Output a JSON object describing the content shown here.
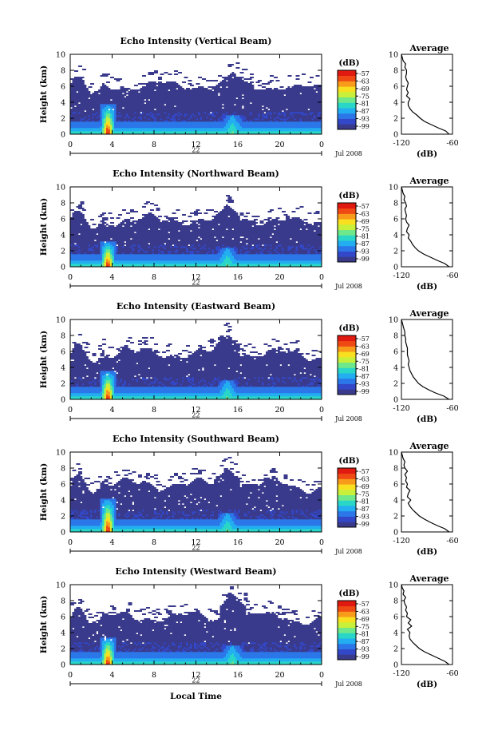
{
  "chart_data": [
    {
      "type": "heatmap",
      "title": "Echo Intensity (Vertical Beam)",
      "ylabel": "Height (km)",
      "x_ticks": [
        "0",
        "4",
        "8",
        "12",
        "16",
        "20",
        "0"
      ],
      "y_ticks": [
        "0",
        "2",
        "4",
        "6",
        "8",
        "10"
      ],
      "xlim": [
        0,
        24
      ],
      "ylim": [
        0,
        10
      ],
      "date_label": "Jul 2008",
      "day": "22",
      "colorbar": {
        "label": "(dB)",
        "ticks": [
          "-57",
          "-63",
          "-69",
          "-75",
          "-81",
          "-87",
          "-93",
          "-99"
        ],
        "colors": [
          "#3a3a8c",
          "#3248c8",
          "#2b76e8",
          "#22aef0",
          "#2ad6c8",
          "#6ee88a",
          "#c8f03a",
          "#f8e020",
          "#f89a1a",
          "#f04a14",
          "#e01a10"
        ]
      },
      "cloud_top_km": 6.1,
      "cloud_peak": {
        "hour": 15.5,
        "top_km": 7.9
      },
      "core_peak": {
        "hour": 3.6,
        "top_km": 3.8
      },
      "avg_profile": {
        "title": "Average",
        "xlabel": "(dB)",
        "xlim": [
          -120,
          -60
        ],
        "x_ticks": [
          "-120",
          "-60"
        ],
        "y_ticks": [
          "0",
          "2",
          "4",
          "6",
          "8",
          "10"
        ],
        "height_km": [
          0,
          0.4,
          0.8,
          1.2,
          1.6,
          2,
          2.4,
          2.8,
          3.2,
          3.6,
          4,
          4.4,
          4.8,
          5.2,
          5.6,
          6,
          6.4,
          6.8,
          7.2,
          7.6,
          8,
          8.4,
          8.8,
          9.2,
          9.6,
          10
        ],
        "db": [
          -64,
          -68,
          -77,
          -85,
          -93,
          -98,
          -102,
          -107,
          -110,
          -112,
          -112,
          -110,
          -114,
          -112,
          -114,
          -113,
          -112,
          -114,
          -115,
          -114,
          -114,
          -116,
          -115,
          -118,
          -119,
          -120
        ]
      }
    },
    {
      "type": "heatmap",
      "title": "Echo Intensity (Northward Beam)",
      "ylabel": "Height (km)",
      "x_ticks": [
        "0",
        "4",
        "8",
        "12",
        "16",
        "20",
        "0"
      ],
      "y_ticks": [
        "0",
        "2",
        "4",
        "6",
        "8",
        "10"
      ],
      "xlim": [
        0,
        24
      ],
      "ylim": [
        0,
        10
      ],
      "date_label": "Jul 2008",
      "day": "22",
      "colorbar": {
        "label": "(dB)",
        "ticks": [
          "-57",
          "-63",
          "-69",
          "-75",
          "-81",
          "-87",
          "-93",
          "-99"
        ],
        "colors": [
          "#3a3a8c",
          "#3248c8",
          "#2b76e8",
          "#22aef0",
          "#2ad6c8",
          "#6ee88a",
          "#c8f03a",
          "#f8e020",
          "#f89a1a",
          "#f04a14",
          "#e01a10"
        ]
      },
      "cloud_top_km": 5.9,
      "cloud_peak": {
        "hour": 15.0,
        "top_km": 7.8
      },
      "core_peak": {
        "hour": 3.6,
        "top_km": 3.2
      },
      "avg_profile": {
        "title": "Average",
        "xlabel": "(dB)",
        "xlim": [
          -120,
          -60
        ],
        "x_ticks": [
          "-120",
          "-60"
        ],
        "y_ticks": [
          "0",
          "2",
          "4",
          "6",
          "8",
          "10"
        ],
        "height_km": [
          0,
          0.4,
          0.8,
          1.2,
          1.6,
          2,
          2.4,
          2.8,
          3.2,
          3.6,
          4,
          4.4,
          4.8,
          5.2,
          5.6,
          6,
          6.4,
          6.8,
          7.2,
          7.6,
          8,
          8.4,
          8.8,
          9.2,
          9.6,
          10
        ],
        "db": [
          -64,
          -69,
          -78,
          -86,
          -94,
          -100,
          -104,
          -107,
          -109,
          -112,
          -111,
          -114,
          -113,
          -111,
          -114,
          -115,
          -114,
          -115,
          -116,
          -114,
          -115,
          -117,
          -116,
          -118,
          -119,
          -120
        ]
      }
    },
    {
      "type": "heatmap",
      "title": "Echo Intensity (Eastward Beam)",
      "ylabel": "Height (km)",
      "x_ticks": [
        "0",
        "4",
        "8",
        "12",
        "16",
        "20",
        "0"
      ],
      "y_ticks": [
        "0",
        "2",
        "4",
        "6",
        "8",
        "10"
      ],
      "xlim": [
        0,
        24
      ],
      "ylim": [
        0,
        10
      ],
      "date_label": "Jul 2008",
      "day": "22",
      "colorbar": {
        "label": "(dB)",
        "ticks": [
          "-57",
          "-63",
          "-69",
          "-75",
          "-81",
          "-87",
          "-93",
          "-99"
        ],
        "colors": [
          "#3a3a8c",
          "#3248c8",
          "#2b76e8",
          "#22aef0",
          "#2ad6c8",
          "#6ee88a",
          "#c8f03a",
          "#f8e020",
          "#f89a1a",
          "#f04a14",
          "#e01a10"
        ]
      },
      "cloud_top_km": 5.8,
      "cloud_peak": {
        "hour": 15.0,
        "top_km": 8.1
      },
      "core_peak": {
        "hour": 3.6,
        "top_km": 3.6
      },
      "avg_profile": {
        "title": "Average",
        "xlabel": "(dB)",
        "xlim": [
          -120,
          -60
        ],
        "x_ticks": [
          "-120",
          "-60"
        ],
        "y_ticks": [
          "0",
          "2",
          "4",
          "6",
          "8",
          "10"
        ],
        "height_km": [
          0,
          0.4,
          0.8,
          1.2,
          1.6,
          2,
          2.4,
          2.8,
          3.2,
          3.6,
          4,
          4.4,
          4.8,
          5.2,
          5.6,
          6,
          6.4,
          6.8,
          7.2,
          7.6,
          8,
          8.4,
          8.8,
          9.2,
          9.6,
          10
        ],
        "db": [
          -64,
          -70,
          -80,
          -88,
          -95,
          -100,
          -103,
          -106,
          -108,
          -110,
          -111,
          -112,
          -111,
          -112,
          -113,
          -113,
          -113,
          -114,
          -115,
          -115,
          -116,
          -116,
          -117,
          -118,
          -119,
          -120
        ]
      }
    },
    {
      "type": "heatmap",
      "title": "Echo Intensity (Southward Beam)",
      "ylabel": "Height (km)",
      "x_ticks": [
        "0",
        "4",
        "8",
        "12",
        "16",
        "20",
        "0"
      ],
      "y_ticks": [
        "0",
        "2",
        "4",
        "6",
        "8",
        "10"
      ],
      "xlim": [
        0,
        24
      ],
      "ylim": [
        0,
        10
      ],
      "date_label": "Jul 2008",
      "day": "22",
      "colorbar": {
        "label": "(dB)",
        "ticks": [
          "-57",
          "-63",
          "-69",
          "-75",
          "-81",
          "-87",
          "-93",
          "-99"
        ],
        "colors": [
          "#3a3a8c",
          "#3248c8",
          "#2b76e8",
          "#22aef0",
          "#2ad6c8",
          "#6ee88a",
          "#c8f03a",
          "#f8e020",
          "#f89a1a",
          "#f04a14",
          "#e01a10"
        ]
      },
      "cloud_top_km": 6.0,
      "cloud_peak": {
        "hour": 15.0,
        "top_km": 8.0
      },
      "core_peak": {
        "hour": 3.6,
        "top_km": 4.3
      },
      "avg_profile": {
        "title": "Average",
        "xlabel": "(dB)",
        "xlim": [
          -120,
          -60
        ],
        "x_ticks": [
          "-120",
          "-60"
        ],
        "y_ticks": [
          "0",
          "2",
          "4",
          "6",
          "8",
          "10"
        ],
        "height_km": [
          0,
          0.4,
          0.8,
          1.2,
          1.6,
          2,
          2.4,
          2.8,
          3.2,
          3.6,
          4,
          4.4,
          4.8,
          5.2,
          5.6,
          6,
          6.4,
          6.8,
          7.2,
          7.6,
          8,
          8.4,
          8.8,
          9.2,
          9.6,
          10
        ],
        "db": [
          -64,
          -69,
          -78,
          -86,
          -93,
          -99,
          -103,
          -107,
          -110,
          -112,
          -109,
          -113,
          -112,
          -110,
          -114,
          -113,
          -115,
          -114,
          -116,
          -113,
          -116,
          -117,
          -116,
          -118,
          -119,
          -120
        ]
      }
    },
    {
      "type": "heatmap",
      "title": "Echo Intensity (Westward Beam)",
      "ylabel": "Height (km)",
      "xlabel": "Local Time",
      "x_ticks": [
        "0",
        "4",
        "8",
        "12",
        "16",
        "20",
        "0"
      ],
      "y_ticks": [
        "0",
        "2",
        "4",
        "6",
        "8",
        "10"
      ],
      "xlim": [
        0,
        24
      ],
      "ylim": [
        0,
        10
      ],
      "date_label": "Jul 2008",
      "day": "22",
      "colorbar": {
        "label": "(dB)",
        "ticks": [
          "-57",
          "-63",
          "-69",
          "-75",
          "-81",
          "-87",
          "-93",
          "-99"
        ],
        "colors": [
          "#3a3a8c",
          "#3248c8",
          "#2b76e8",
          "#22aef0",
          "#2ad6c8",
          "#6ee88a",
          "#c8f03a",
          "#f8e020",
          "#f89a1a",
          "#f04a14",
          "#e01a10"
        ]
      },
      "cloud_top_km": 6.0,
      "cloud_peak": {
        "hour": 15.5,
        "top_km": 8.8
      },
      "core_peak": {
        "hour": 3.6,
        "top_km": 3.5
      },
      "avg_profile": {
        "title": "Average",
        "xlabel": "(dB)",
        "xlim": [
          -120,
          -60
        ],
        "x_ticks": [
          "-120",
          "-60"
        ],
        "y_ticks": [
          "0",
          "2",
          "4",
          "6",
          "8",
          "10"
        ],
        "height_km": [
          0,
          0.4,
          0.8,
          1.2,
          1.6,
          2,
          2.4,
          2.8,
          3.2,
          3.6,
          4,
          4.4,
          4.8,
          5.2,
          5.6,
          6,
          6.4,
          6.8,
          7.2,
          7.6,
          8,
          8.4,
          8.8,
          9.2,
          9.6,
          10
        ],
        "db": [
          -64,
          -69,
          -77,
          -85,
          -93,
          -99,
          -103,
          -107,
          -110,
          -111,
          -110,
          -113,
          -108,
          -112,
          -109,
          -114,
          -113,
          -115,
          -114,
          -116,
          -117,
          -115,
          -118,
          -117,
          -119,
          -120
        ]
      }
    }
  ]
}
